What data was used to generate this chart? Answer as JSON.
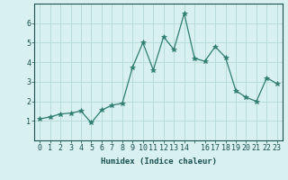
{
  "xlabel": "Humidex (Indice chaleur)",
  "x": [
    0,
    1,
    2,
    3,
    4,
    5,
    6,
    7,
    8,
    9,
    10,
    11,
    12,
    13,
    14,
    15,
    16,
    17,
    18,
    19,
    20,
    21,
    22,
    23
  ],
  "y": [
    1.1,
    1.2,
    1.35,
    1.4,
    1.5,
    0.9,
    1.55,
    1.8,
    1.9,
    3.75,
    5.0,
    3.6,
    5.3,
    4.65,
    6.5,
    4.2,
    4.05,
    4.8,
    4.25,
    2.55,
    2.2,
    2.0,
    3.2,
    2.9
  ],
  "line_color": "#2e7d70",
  "marker": "*",
  "marker_size": 4,
  "bg_color": "#d8f0ef",
  "grid_color": "#b8dcd8",
  "tick_color": "#1a5050",
  "ylim": [
    0,
    7
  ],
  "xlim": [
    -0.5,
    23.5
  ],
  "yticks": [
    1,
    2,
    3,
    4,
    5,
    6
  ],
  "xticks": [
    0,
    1,
    2,
    3,
    4,
    5,
    6,
    7,
    8,
    9,
    10,
    11,
    12,
    13,
    14,
    15,
    16,
    17,
    18,
    19,
    20,
    21,
    22,
    23
  ],
  "xtick_labels": [
    "0",
    "1",
    "2",
    "3",
    "4",
    "5",
    "6",
    "7",
    "8",
    "9",
    "10",
    "11",
    "12",
    "13",
    "14",
    "",
    "16",
    "17",
    "18",
    "19",
    "20",
    "21",
    "22",
    "23"
  ],
  "label_fontsize": 6.5,
  "tick_fontsize": 6.0
}
